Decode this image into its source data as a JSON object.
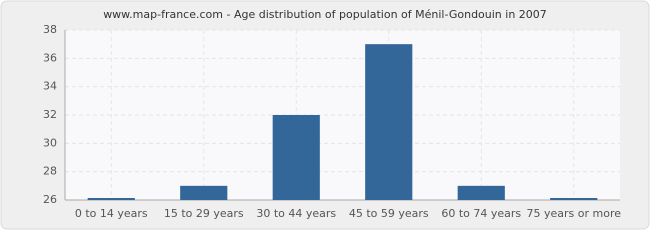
{
  "chart_data": {
    "type": "bar",
    "title": "www.map-france.com - Age distribution of population of Ménil-Gondouin in 2007",
    "categories": [
      "0 to 14 years",
      "15 to 29 years",
      "30 to 44 years",
      "45 to 59 years",
      "60 to 74 years",
      "75 years or more"
    ],
    "values": [
      26,
      27,
      32,
      37,
      27,
      26
    ],
    "color": "#336699",
    "ylim": [
      26,
      38
    ],
    "yticks": [
      26,
      28,
      30,
      32,
      34,
      36,
      38
    ],
    "grid": true
  }
}
